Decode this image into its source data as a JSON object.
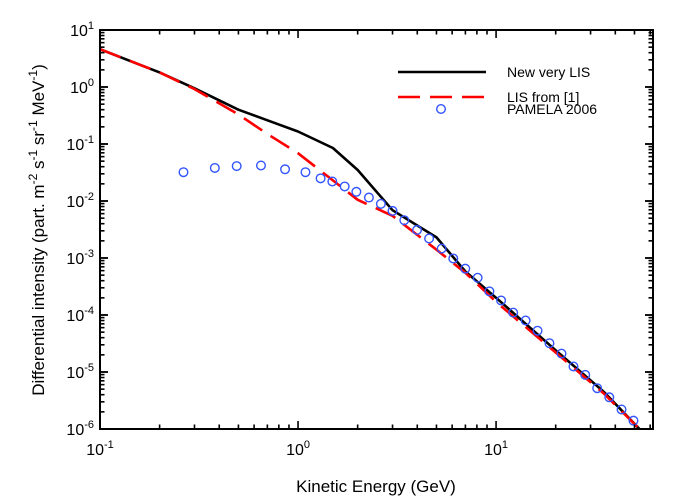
{
  "chart_data": {
    "type": "line",
    "title": "",
    "xlabel": "Kinetic Energy (GeV)",
    "ylabel_parts": [
      "Differential intensity (part. m",
      "-2",
      " s",
      "-1",
      " sr",
      "-1",
      " MeV",
      "-1",
      ")"
    ],
    "x_scale": "log",
    "y_scale": "log",
    "xlim": [
      0.1,
      62
    ],
    "ylim": [
      1e-06,
      10
    ],
    "grid": false,
    "legend_position": "top-right",
    "x_ticks": [
      {
        "base": "10",
        "exp": "-1",
        "value": 0.1
      },
      {
        "base": "10",
        "exp": "0",
        "value": 1
      },
      {
        "base": "10",
        "exp": "1",
        "value": 10
      }
    ],
    "y_ticks": [
      {
        "base": "10",
        "exp": "1",
        "value": 10
      },
      {
        "base": "10",
        "exp": "0",
        "value": 1
      },
      {
        "base": "10",
        "exp": "-1",
        "value": 0.1
      },
      {
        "base": "10",
        "exp": "-2",
        "value": 0.01
      },
      {
        "base": "10",
        "exp": "-3",
        "value": 0.001
      },
      {
        "base": "10",
        "exp": "-4",
        "value": 0.0001
      },
      {
        "base": "10",
        "exp": "-5",
        "value": 1e-05
      },
      {
        "base": "10",
        "exp": "-6",
        "value": 1e-06
      }
    ],
    "series": [
      {
        "name": "New very LIS",
        "style": "solid",
        "color": "#000000",
        "points": [
          [
            0.1,
            4.6
          ],
          [
            0.2,
            1.8
          ],
          [
            0.3,
            0.95
          ],
          [
            0.5,
            0.4
          ],
          [
            0.7,
            0.26
          ],
          [
            1.0,
            0.166
          ],
          [
            1.5,
            0.085
          ],
          [
            2.0,
            0.035
          ],
          [
            3.0,
            0.0069
          ],
          [
            5.0,
            0.0023
          ],
          [
            7.0,
            0.00058
          ],
          [
            10,
            0.0002
          ],
          [
            20,
            2.4e-05
          ],
          [
            35,
            4.5e-06
          ],
          [
            53,
            1e-06
          ]
        ]
      },
      {
        "name": "LIS from [1]",
        "style": "dashed",
        "color": "#ff0000",
        "points": [
          [
            0.1,
            4.6
          ],
          [
            0.2,
            1.8
          ],
          [
            0.3,
            0.92
          ],
          [
            0.5,
            0.33
          ],
          [
            0.7,
            0.15
          ],
          [
            1.0,
            0.069
          ],
          [
            1.5,
            0.023
          ],
          [
            2.0,
            0.0105
          ],
          [
            3.0,
            0.0055
          ],
          [
            5.0,
            0.0014
          ],
          [
            7.0,
            0.00055
          ],
          [
            10,
            0.00017
          ],
          [
            20,
            2.2e-05
          ],
          [
            35,
            4.2e-06
          ],
          [
            53,
            1e-06
          ]
        ]
      },
      {
        "name": "PAMELA 2006",
        "style": "markers",
        "marker": "open-circle",
        "color": "#3355ff",
        "points": [
          [
            0.264,
            0.032
          ],
          [
            0.38,
            0.038
          ],
          [
            0.49,
            0.041
          ],
          [
            0.65,
            0.042
          ],
          [
            0.86,
            0.036
          ],
          [
            1.09,
            0.032
          ],
          [
            1.3,
            0.025
          ],
          [
            1.49,
            0.022
          ],
          [
            1.72,
            0.018
          ],
          [
            1.97,
            0.0145
          ],
          [
            2.28,
            0.0115
          ],
          [
            2.62,
            0.0089
          ],
          [
            3.0,
            0.0067
          ],
          [
            3.44,
            0.0046
          ],
          [
            3.99,
            0.0031
          ],
          [
            4.59,
            0.0022
          ],
          [
            5.31,
            0.00146
          ],
          [
            6.08,
            0.00098
          ],
          [
            6.99,
            0.00065
          ],
          [
            8.07,
            0.00045
          ],
          [
            9.25,
            0.00026
          ],
          [
            10.6,
            0.00018
          ],
          [
            12.2,
            0.00011
          ],
          [
            14.1,
            8e-05
          ],
          [
            16.2,
            5.3e-05
          ],
          [
            18.6,
            3.2e-05
          ],
          [
            21.4,
            2.1e-05
          ],
          [
            24.6,
            1.25e-05
          ],
          [
            28.2,
            8.9e-06
          ],
          [
            32.4,
            5.2e-06
          ],
          [
            37.3,
            3.6e-06
          ],
          [
            43.0,
            2.2e-06
          ],
          [
            49.4,
            1.4e-06
          ]
        ]
      }
    ]
  }
}
